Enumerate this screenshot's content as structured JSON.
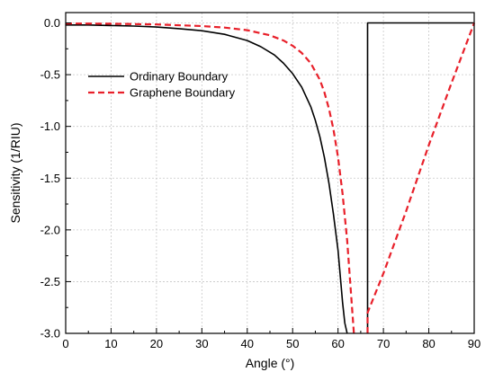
{
  "chart_data": {
    "type": "line",
    "xlabel": "Angle (°)",
    "ylabel": "Sensitivity (1/RIU)",
    "xlim": [
      0,
      90
    ],
    "ylim": [
      -3.0,
      0.1
    ],
    "x_ticks": [
      0,
      10,
      20,
      30,
      40,
      50,
      60,
      70,
      80,
      90
    ],
    "y_ticks": [
      -3.0,
      -2.5,
      -2.0,
      -1.5,
      -1.0,
      -0.5,
      0.0
    ],
    "x_tick_labels": [
      "0",
      "10",
      "20",
      "30",
      "40",
      "50",
      "60",
      "70",
      "80",
      "90"
    ],
    "y_tick_labels": [
      "-3.0",
      "-2.5",
      "-2.0",
      "-1.5",
      "-1.0",
      "-0.5",
      "0.0"
    ],
    "grid": true,
    "legend_position": "top-left",
    "series": [
      {
        "name": "Ordinary Boundary",
        "color": "#000000",
        "style": "solid",
        "segments": [
          {
            "x": [
              0,
              5,
              10,
              15,
              20,
              25,
              30,
              35,
              40,
              43,
              46,
              48,
              50,
              52,
              54,
              55,
              56,
              57,
              58,
              59,
              60,
              60.5,
              61,
              61.5,
              62
            ],
            "y": [
              -0.02,
              -0.02,
              -0.025,
              -0.03,
              -0.04,
              -0.055,
              -0.075,
              -0.11,
              -0.17,
              -0.23,
              -0.31,
              -0.39,
              -0.49,
              -0.62,
              -0.81,
              -0.94,
              -1.1,
              -1.3,
              -1.55,
              -1.85,
              -2.2,
              -2.45,
              -2.7,
              -2.9,
              -3.0
            ]
          },
          {
            "x": [
              66.5,
              66.5,
              90
            ],
            "y": [
              -3.0,
              0.0,
              0.0
            ]
          }
        ]
      },
      {
        "name": "Graphene Boundary",
        "color": "#e8202a",
        "style": "dashed",
        "segments": [
          {
            "x": [
              0,
              10,
              20,
              30,
              35,
              40,
              45,
              48,
              50,
              52,
              54,
              56,
              57,
              58,
              59,
              60,
              61,
              62,
              62.5,
              63,
              63.5
            ],
            "y": [
              -0.005,
              -0.008,
              -0.015,
              -0.03,
              -0.045,
              -0.07,
              -0.12,
              -0.17,
              -0.22,
              -0.29,
              -0.39,
              -0.55,
              -0.67,
              -0.83,
              -1.03,
              -1.3,
              -1.65,
              -2.1,
              -2.4,
              -2.7,
              -3.0
            ]
          },
          {
            "x": [
              66.5,
              66.5,
              70,
              75,
              80,
              85,
              90
            ],
            "y": [
              -3.0,
              -2.8,
              -2.42,
              -1.82,
              -1.18,
              -0.58,
              0.0
            ]
          }
        ]
      }
    ]
  }
}
